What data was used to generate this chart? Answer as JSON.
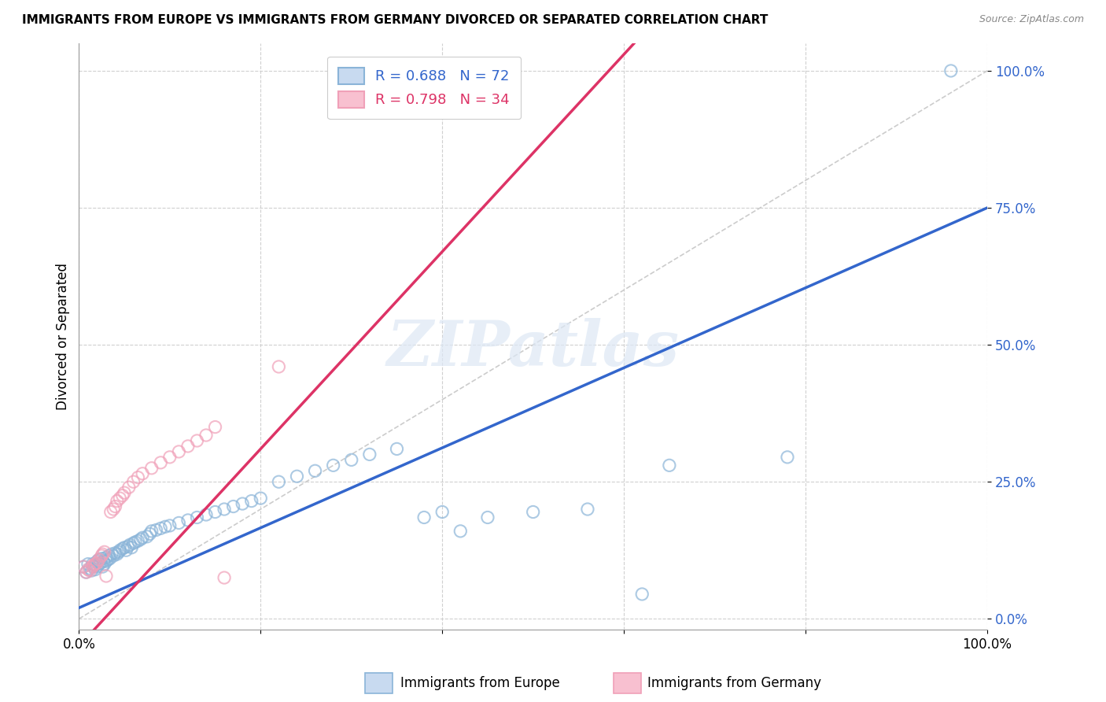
{
  "title": "IMMIGRANTS FROM EUROPE VS IMMIGRANTS FROM GERMANY DIVORCED OR SEPARATED CORRELATION CHART",
  "source": "Source: ZipAtlas.com",
  "ylabel": "Divorced or Separated",
  "xlim": [
    0,
    1
  ],
  "ylim": [
    -0.02,
    1.05
  ],
  "yticks": [
    0.0,
    0.25,
    0.5,
    0.75,
    1.0
  ],
  "ytick_labels": [
    "0.0%",
    "25.0%",
    "50.0%",
    "75.0%",
    "100.0%"
  ],
  "xticks": [
    0.0,
    0.2,
    0.4,
    0.6,
    0.8,
    1.0
  ],
  "xtick_labels": [
    "0.0%",
    "",
    "",
    "",
    "",
    "100.0%"
  ],
  "watermark_text": "ZIPatlas",
  "blue_color": "#8ab4d8",
  "pink_color": "#f0a0b8",
  "blue_line_color": "#3366cc",
  "pink_line_color": "#dd3366",
  "ref_line_color": "#cccccc",
  "blue_slope": 0.73,
  "blue_intercept": 0.02,
  "pink_slope": 1.8,
  "pink_intercept": -0.05,
  "blue_points": [
    [
      0.005,
      0.095
    ],
    [
      0.008,
      0.085
    ],
    [
      0.01,
      0.1
    ],
    [
      0.012,
      0.092
    ],
    [
      0.014,
      0.088
    ],
    [
      0.015,
      0.1
    ],
    [
      0.016,
      0.095
    ],
    [
      0.018,
      0.098
    ],
    [
      0.018,
      0.09
    ],
    [
      0.02,
      0.105
    ],
    [
      0.02,
      0.095
    ],
    [
      0.022,
      0.108
    ],
    [
      0.022,
      0.1
    ],
    [
      0.024,
      0.102
    ],
    [
      0.025,
      0.11
    ],
    [
      0.026,
      0.095
    ],
    [
      0.027,
      0.105
    ],
    [
      0.028,
      0.1
    ],
    [
      0.03,
      0.112
    ],
    [
      0.03,
      0.105
    ],
    [
      0.032,
      0.108
    ],
    [
      0.033,
      0.115
    ],
    [
      0.034,
      0.11
    ],
    [
      0.036,
      0.118
    ],
    [
      0.038,
      0.115
    ],
    [
      0.04,
      0.12
    ],
    [
      0.042,
      0.118
    ],
    [
      0.044,
      0.122
    ],
    [
      0.045,
      0.125
    ],
    [
      0.048,
      0.128
    ],
    [
      0.05,
      0.13
    ],
    [
      0.052,
      0.125
    ],
    [
      0.054,
      0.132
    ],
    [
      0.056,
      0.135
    ],
    [
      0.058,
      0.13
    ],
    [
      0.06,
      0.138
    ],
    [
      0.062,
      0.14
    ],
    [
      0.065,
      0.142
    ],
    [
      0.068,
      0.145
    ],
    [
      0.07,
      0.148
    ],
    [
      0.075,
      0.15
    ],
    [
      0.078,
      0.155
    ],
    [
      0.08,
      0.16
    ],
    [
      0.085,
      0.162
    ],
    [
      0.09,
      0.165
    ],
    [
      0.095,
      0.168
    ],
    [
      0.1,
      0.17
    ],
    [
      0.11,
      0.175
    ],
    [
      0.12,
      0.18
    ],
    [
      0.13,
      0.185
    ],
    [
      0.14,
      0.19
    ],
    [
      0.15,
      0.195
    ],
    [
      0.16,
      0.2
    ],
    [
      0.17,
      0.205
    ],
    [
      0.18,
      0.21
    ],
    [
      0.19,
      0.215
    ],
    [
      0.2,
      0.22
    ],
    [
      0.22,
      0.25
    ],
    [
      0.24,
      0.26
    ],
    [
      0.26,
      0.27
    ],
    [
      0.28,
      0.28
    ],
    [
      0.3,
      0.29
    ],
    [
      0.32,
      0.3
    ],
    [
      0.35,
      0.31
    ],
    [
      0.38,
      0.185
    ],
    [
      0.4,
      0.195
    ],
    [
      0.42,
      0.16
    ],
    [
      0.45,
      0.185
    ],
    [
      0.5,
      0.195
    ],
    [
      0.56,
      0.2
    ],
    [
      0.62,
      0.045
    ],
    [
      0.65,
      0.28
    ],
    [
      0.78,
      0.295
    ],
    [
      0.96,
      1.0
    ]
  ],
  "pink_points": [
    [
      0.005,
      0.095
    ],
    [
      0.008,
      0.085
    ],
    [
      0.01,
      0.09
    ],
    [
      0.012,
      0.088
    ],
    [
      0.015,
      0.095
    ],
    [
      0.016,
      0.098
    ],
    [
      0.018,
      0.1
    ],
    [
      0.02,
      0.102
    ],
    [
      0.022,
      0.108
    ],
    [
      0.025,
      0.115
    ],
    [
      0.026,
      0.118
    ],
    [
      0.028,
      0.122
    ],
    [
      0.03,
      0.078
    ],
    [
      0.035,
      0.195
    ],
    [
      0.038,
      0.2
    ],
    [
      0.04,
      0.205
    ],
    [
      0.042,
      0.215
    ],
    [
      0.045,
      0.22
    ],
    [
      0.048,
      0.225
    ],
    [
      0.05,
      0.23
    ],
    [
      0.055,
      0.24
    ],
    [
      0.06,
      0.25
    ],
    [
      0.065,
      0.258
    ],
    [
      0.07,
      0.265
    ],
    [
      0.08,
      0.275
    ],
    [
      0.09,
      0.285
    ],
    [
      0.1,
      0.295
    ],
    [
      0.11,
      0.305
    ],
    [
      0.12,
      0.315
    ],
    [
      0.13,
      0.325
    ],
    [
      0.14,
      0.335
    ],
    [
      0.15,
      0.35
    ],
    [
      0.16,
      0.075
    ],
    [
      0.22,
      0.46
    ]
  ]
}
